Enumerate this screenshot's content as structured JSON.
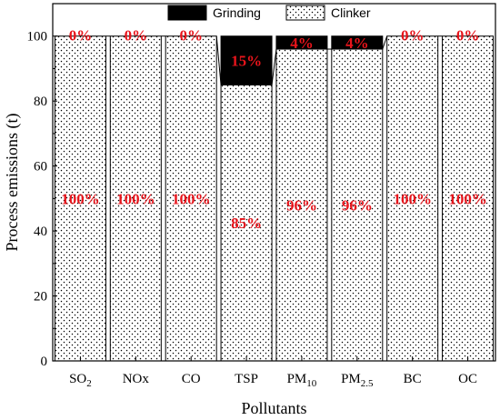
{
  "chart_data": {
    "type": "bar",
    "stacked": true,
    "title": "",
    "xlabel": "Pollutants",
    "ylabel": "Process emissions (t)",
    "ylim": [
      0,
      110
    ],
    "yticks": [
      0,
      20,
      40,
      60,
      80,
      100
    ],
    "categories": [
      {
        "base": "SO",
        "sub": "2"
      },
      {
        "base": "NOx",
        "sub": ""
      },
      {
        "base": "CO",
        "sub": ""
      },
      {
        "base": "TSP",
        "sub": ""
      },
      {
        "base": "PM",
        "sub": "10"
      },
      {
        "base": "PM",
        "sub": "2.5"
      },
      {
        "base": "BC",
        "sub": ""
      },
      {
        "base": "OC",
        "sub": ""
      }
    ],
    "series": [
      {
        "name": "Clinker",
        "values": [
          100,
          100,
          100,
          85,
          96,
          96,
          100,
          100
        ],
        "labels": [
          "100%",
          "100%",
          "100%",
          "85%",
          "96%",
          "96%",
          "100%",
          "100%"
        ],
        "pattern": "dots"
      },
      {
        "name": "Grinding",
        "values": [
          0,
          0,
          0,
          15,
          4,
          4,
          0,
          0
        ],
        "labels": [
          "0%",
          "0%",
          "0%",
          "15%",
          "4%",
          "4%",
          "0%",
          "0%"
        ],
        "color": "#000000"
      }
    ],
    "legend_position": "top-center",
    "grid": false,
    "label_color": "#e8141b"
  }
}
